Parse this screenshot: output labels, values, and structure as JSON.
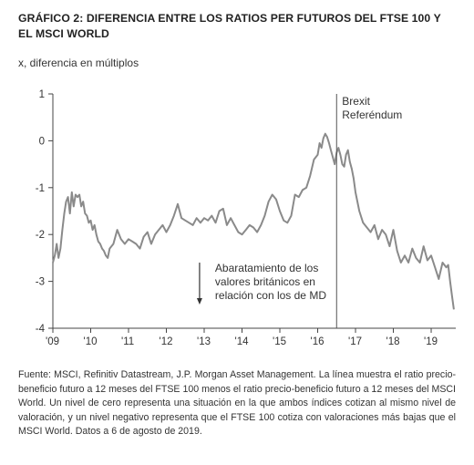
{
  "chart_data": {
    "type": "line",
    "title": "GRÁFICO 2: DIFERENCIA ENTRE LOS RATIOS PER FUTUROS DEL FTSE 100 Y EL MSCI WORLD",
    "subtitle": "x, diferencia en múltiplos",
    "xlabel": "",
    "ylabel": "",
    "xlim": [
      2009.0,
      2019.65
    ],
    "ylim": [
      -4,
      1
    ],
    "y_ticks": [
      1,
      0,
      -1,
      -2,
      -3,
      -4
    ],
    "y_tick_labels": [
      "1",
      "0",
      "-1",
      "-2",
      "-3",
      "-4"
    ],
    "x_ticks": [
      2009,
      2010,
      2011,
      2012,
      2013,
      2014,
      2015,
      2016,
      2017,
      2018,
      2019
    ],
    "x_tick_labels": [
      "'09",
      "'10",
      "'11",
      "'12",
      "'13",
      "'14",
      "'15",
      "'16",
      "'17",
      "'18",
      "'19"
    ],
    "grid": false,
    "series": [
      {
        "color": "#8a8a8a",
        "x": [
          2009.0,
          2009.05,
          2009.1,
          2009.15,
          2009.2,
          2009.25,
          2009.3,
          2009.35,
          2009.4,
          2009.45,
          2009.5,
          2009.55,
          2009.6,
          2009.65,
          2009.7,
          2009.75,
          2009.8,
          2009.85,
          2009.9,
          2009.95,
          2010.0,
          2010.05,
          2010.1,
          2010.15,
          2010.2,
          2010.25,
          2010.3,
          2010.35,
          2010.4,
          2010.45,
          2010.5,
          2010.6,
          2010.7,
          2010.8,
          2010.9,
          2011.0,
          2011.1,
          2011.2,
          2011.3,
          2011.4,
          2011.5,
          2011.6,
          2011.7,
          2011.8,
          2011.9,
          2012.0,
          2012.1,
          2012.2,
          2012.3,
          2012.4,
          2012.5,
          2012.6,
          2012.7,
          2012.8,
          2012.9,
          2013.0,
          2013.1,
          2013.2,
          2013.3,
          2013.4,
          2013.5,
          2013.6,
          2013.7,
          2013.8,
          2013.9,
          2014.0,
          2014.1,
          2014.2,
          2014.3,
          2014.4,
          2014.5,
          2014.6,
          2014.7,
          2014.8,
          2014.9,
          2015.0,
          2015.1,
          2015.2,
          2015.3,
          2015.4,
          2015.5,
          2015.6,
          2015.7,
          2015.8,
          2015.9,
          2016.0,
          2016.05,
          2016.1,
          2016.15,
          2016.2,
          2016.25,
          2016.3,
          2016.35,
          2016.4,
          2016.45,
          2016.5,
          2016.55,
          2016.6,
          2016.65,
          2016.7,
          2016.75,
          2016.8,
          2016.85,
          2016.9,
          2016.95,
          2017.0,
          2017.1,
          2017.2,
          2017.3,
          2017.4,
          2017.5,
          2017.6,
          2017.7,
          2017.8,
          2017.9,
          2018.0,
          2018.1,
          2018.2,
          2018.3,
          2018.4,
          2018.5,
          2018.6,
          2018.7,
          2018.8,
          2018.9,
          2019.0,
          2019.1,
          2019.2,
          2019.3,
          2019.4,
          2019.45,
          2019.5,
          2019.55,
          2019.6
        ],
        "y": [
          -2.6,
          -2.45,
          -2.2,
          -2.5,
          -2.3,
          -1.9,
          -1.55,
          -1.3,
          -1.2,
          -1.55,
          -1.1,
          -1.4,
          -1.15,
          -1.2,
          -1.15,
          -1.4,
          -1.3,
          -1.55,
          -1.6,
          -1.75,
          -1.7,
          -1.9,
          -1.8,
          -2.0,
          -2.15,
          -2.2,
          -2.3,
          -2.35,
          -2.45,
          -2.5,
          -2.3,
          -2.2,
          -1.9,
          -2.1,
          -2.2,
          -2.1,
          -2.15,
          -2.2,
          -2.3,
          -2.05,
          -1.95,
          -2.2,
          -2.0,
          -1.9,
          -1.8,
          -1.95,
          -1.8,
          -1.6,
          -1.35,
          -1.65,
          -1.7,
          -1.75,
          -1.8,
          -1.65,
          -1.75,
          -1.65,
          -1.7,
          -1.6,
          -1.75,
          -1.5,
          -1.45,
          -1.8,
          -1.65,
          -1.8,
          -1.95,
          -2.0,
          -1.9,
          -1.8,
          -1.85,
          -1.95,
          -1.8,
          -1.6,
          -1.3,
          -1.15,
          -1.25,
          -1.5,
          -1.7,
          -1.75,
          -1.6,
          -1.15,
          -1.2,
          -1.05,
          -1.0,
          -0.75,
          -0.4,
          -0.3,
          -0.05,
          -0.15,
          0.05,
          0.15,
          0.08,
          -0.05,
          -0.2,
          -0.35,
          -0.5,
          -0.25,
          -0.15,
          -0.3,
          -0.5,
          -0.55,
          -0.3,
          -0.2,
          -0.45,
          -0.6,
          -0.8,
          -1.1,
          -1.5,
          -1.75,
          -1.85,
          -1.95,
          -1.8,
          -2.1,
          -1.9,
          -2.0,
          -2.25,
          -1.9,
          -2.35,
          -2.6,
          -2.45,
          -2.6,
          -2.3,
          -2.5,
          -2.6,
          -2.25,
          -2.55,
          -2.45,
          -2.7,
          -2.95,
          -2.6,
          -2.7,
          -2.65,
          -3.0,
          -3.3,
          -3.6
        ]
      }
    ],
    "annotations": [
      {
        "lines": [
          "Brexit",
          "Referéndum"
        ],
        "x": 2016.5
      },
      {
        "lines": [
          "Abaratamiento de los",
          "valores británicos en",
          "relación con los de MD"
        ],
        "x": 2012.95,
        "y": -2.6
      }
    ]
  },
  "footnote": "Fuente: MSCI, Refinitiv Datastream, J.P. Morgan Asset Management. La línea muestra el ratio precio-beneficio futuro a 12 meses del FTSE 100 menos el ratio precio-beneficio futuro a 12 meses del MSCI World. Un nivel de cero representa una situación en la que ambos índices cotizan al mismo nivel de valoración, y un nivel negativo representa que el FTSE 100 cotiza con valoraciones más bajas que el MSCI World. Datos a 6 de agosto de 2019."
}
